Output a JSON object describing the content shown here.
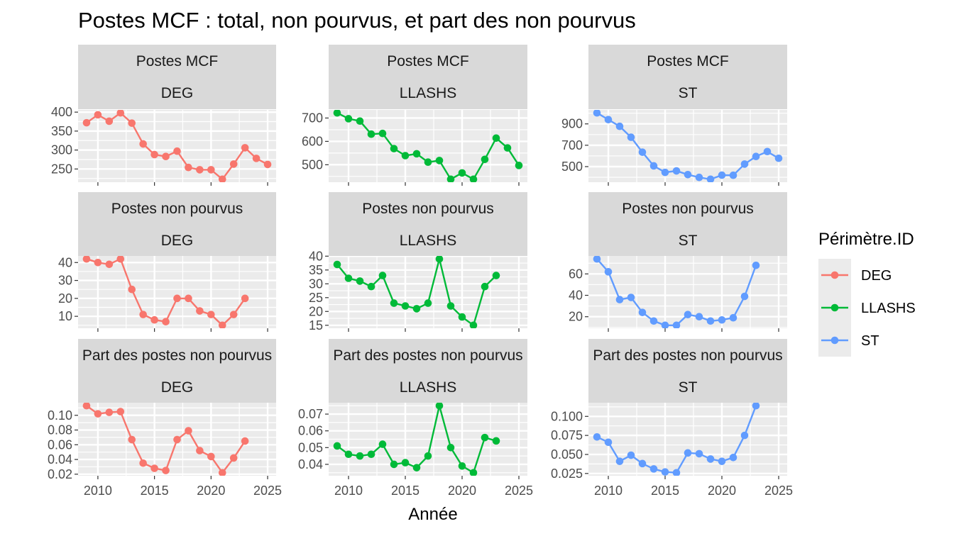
{
  "chart_data": {
    "type": "line",
    "title": "Postes MCF : total, non pourvus, et part des non pourvus",
    "xlabel": "Année",
    "x_ticks": [
      2010,
      2015,
      2020,
      2025
    ],
    "legend": {
      "title": "Périmètre.ID",
      "placement": "right",
      "entries": [
        {
          "name": "DEG",
          "color": "#F8766D"
        },
        {
          "name": "LLASHS",
          "color": "#00BA38"
        },
        {
          "name": "ST",
          "color": "#619CFF"
        }
      ]
    },
    "grid": true,
    "facets": [
      {
        "row_label": "Postes MCF",
        "col_label": "DEG",
        "color": "#F8766D",
        "y_ticks": [
          250,
          300,
          350,
          400
        ],
        "y_tick_labels": [
          "250",
          "300",
          "350",
          "400"
        ],
        "x": [
          2009,
          2010,
          2011,
          2012,
          2013,
          2014,
          2015,
          2016,
          2017,
          2018,
          2019,
          2020,
          2021,
          2022,
          2023,
          2024,
          2025
        ],
        "y": [
          372,
          393,
          376,
          398,
          371,
          316,
          288,
          283,
          297,
          254,
          248,
          248,
          223,
          263,
          306,
          278,
          262
        ]
      },
      {
        "row_label": "Postes MCF",
        "col_label": "LLASHS",
        "color": "#00BA38",
        "y_ticks": [
          500,
          600,
          700
        ],
        "y_tick_labels": [
          "500",
          "600",
          "700"
        ],
        "x": [
          2009,
          2010,
          2011,
          2012,
          2013,
          2014,
          2015,
          2016,
          2017,
          2018,
          2019,
          2020,
          2021,
          2022,
          2023,
          2024,
          2025
        ],
        "y": [
          722,
          697,
          687,
          631,
          634,
          569,
          539,
          547,
          511,
          518,
          438,
          465,
          438,
          523,
          614,
          572,
          497
        ]
      },
      {
        "row_label": "Postes MCF",
        "col_label": "ST",
        "color": "#619CFF",
        "y_ticks": [
          500,
          700,
          900
        ],
        "y_tick_labels": [
          "500",
          "700",
          "900"
        ],
        "x": [
          2009,
          2010,
          2011,
          2012,
          2013,
          2014,
          2015,
          2016,
          2017,
          2018,
          2019,
          2020,
          2021,
          2022,
          2023,
          2024,
          2025
        ],
        "y": [
          1003,
          940,
          877,
          775,
          635,
          507,
          446,
          460,
          425,
          399,
          382,
          420,
          419,
          524,
          595,
          641,
          578
        ]
      },
      {
        "row_label": "Postes non pourvus",
        "col_label": "DEG",
        "color": "#F8766D",
        "y_ticks": [
          10,
          20,
          30,
          40
        ],
        "y_tick_labels": [
          "10",
          "20",
          "30",
          "40"
        ],
        "x": [
          2009,
          2010,
          2011,
          2012,
          2013,
          2014,
          2015,
          2016,
          2017,
          2018,
          2019,
          2020,
          2021,
          2022,
          2023
        ],
        "y": [
          42,
          40,
          39,
          42,
          25,
          11,
          8,
          7,
          20,
          20,
          13,
          11,
          5,
          11,
          20
        ]
      },
      {
        "row_label": "Postes non pourvus",
        "col_label": "LLASHS",
        "color": "#00BA38",
        "y_ticks": [
          15,
          20,
          25,
          30,
          35,
          40
        ],
        "y_tick_labels": [
          "15",
          "20",
          "25",
          "30",
          "35",
          "40"
        ],
        "x": [
          2009,
          2010,
          2011,
          2012,
          2013,
          2014,
          2015,
          2016,
          2017,
          2018,
          2019,
          2020,
          2021,
          2022,
          2023
        ],
        "y": [
          37,
          32,
          31,
          29,
          33,
          23,
          22,
          21,
          23,
          39,
          22,
          18,
          15,
          29,
          33
        ]
      },
      {
        "row_label": "Postes non pourvus",
        "col_label": "ST",
        "color": "#619CFF",
        "y_ticks": [
          20,
          40,
          60
        ],
        "y_tick_labels": [
          "20",
          "40",
          "60"
        ],
        "x": [
          2009,
          2010,
          2011,
          2012,
          2013,
          2014,
          2015,
          2016,
          2017,
          2018,
          2019,
          2020,
          2021,
          2022,
          2023
        ],
        "y": [
          74,
          62,
          36,
          38,
          24,
          16,
          12,
          12,
          22,
          20,
          16,
          17,
          19,
          39,
          68
        ]
      },
      {
        "row_label": "Part des postes non pourvus",
        "col_label": "DEG",
        "color": "#F8766D",
        "y_ticks": [
          0.02,
          0.04,
          0.06,
          0.08,
          0.1
        ],
        "y_tick_labels": [
          "0.02",
          "0.04",
          "0.06",
          "0.08",
          "0.10"
        ],
        "x": [
          2009,
          2010,
          2011,
          2012,
          2013,
          2014,
          2015,
          2016,
          2017,
          2018,
          2019,
          2020,
          2021,
          2022,
          2023
        ],
        "y": [
          0.113,
          0.102,
          0.104,
          0.105,
          0.067,
          0.035,
          0.028,
          0.025,
          0.067,
          0.079,
          0.052,
          0.044,
          0.022,
          0.042,
          0.065
        ]
      },
      {
        "row_label": "Part des postes non pourvus",
        "col_label": "LLASHS",
        "color": "#00BA38",
        "y_ticks": [
          0.04,
          0.05,
          0.06,
          0.07
        ],
        "y_tick_labels": [
          "0.04",
          "0.05",
          "0.06",
          "0.07"
        ],
        "x": [
          2009,
          2010,
          2011,
          2012,
          2013,
          2014,
          2015,
          2016,
          2017,
          2018,
          2019,
          2020,
          2021,
          2022,
          2023
        ],
        "y": [
          0.051,
          0.046,
          0.045,
          0.046,
          0.052,
          0.04,
          0.041,
          0.038,
          0.045,
          0.075,
          0.05,
          0.039,
          0.035,
          0.056,
          0.054
        ]
      },
      {
        "row_label": "Part des postes non pourvus",
        "col_label": "ST",
        "color": "#619CFF",
        "y_ticks": [
          0.025,
          0.05,
          0.075,
          0.1
        ],
        "y_tick_labels": [
          "0.025",
          "0.050",
          "0.075",
          "0.100"
        ],
        "x": [
          2009,
          2010,
          2011,
          2012,
          2013,
          2014,
          2015,
          2016,
          2017,
          2018,
          2019,
          2020,
          2021,
          2022,
          2023
        ],
        "y": [
          0.073,
          0.066,
          0.041,
          0.049,
          0.038,
          0.031,
          0.027,
          0.026,
          0.052,
          0.051,
          0.044,
          0.041,
          0.046,
          0.075,
          0.114
        ]
      }
    ]
  }
}
